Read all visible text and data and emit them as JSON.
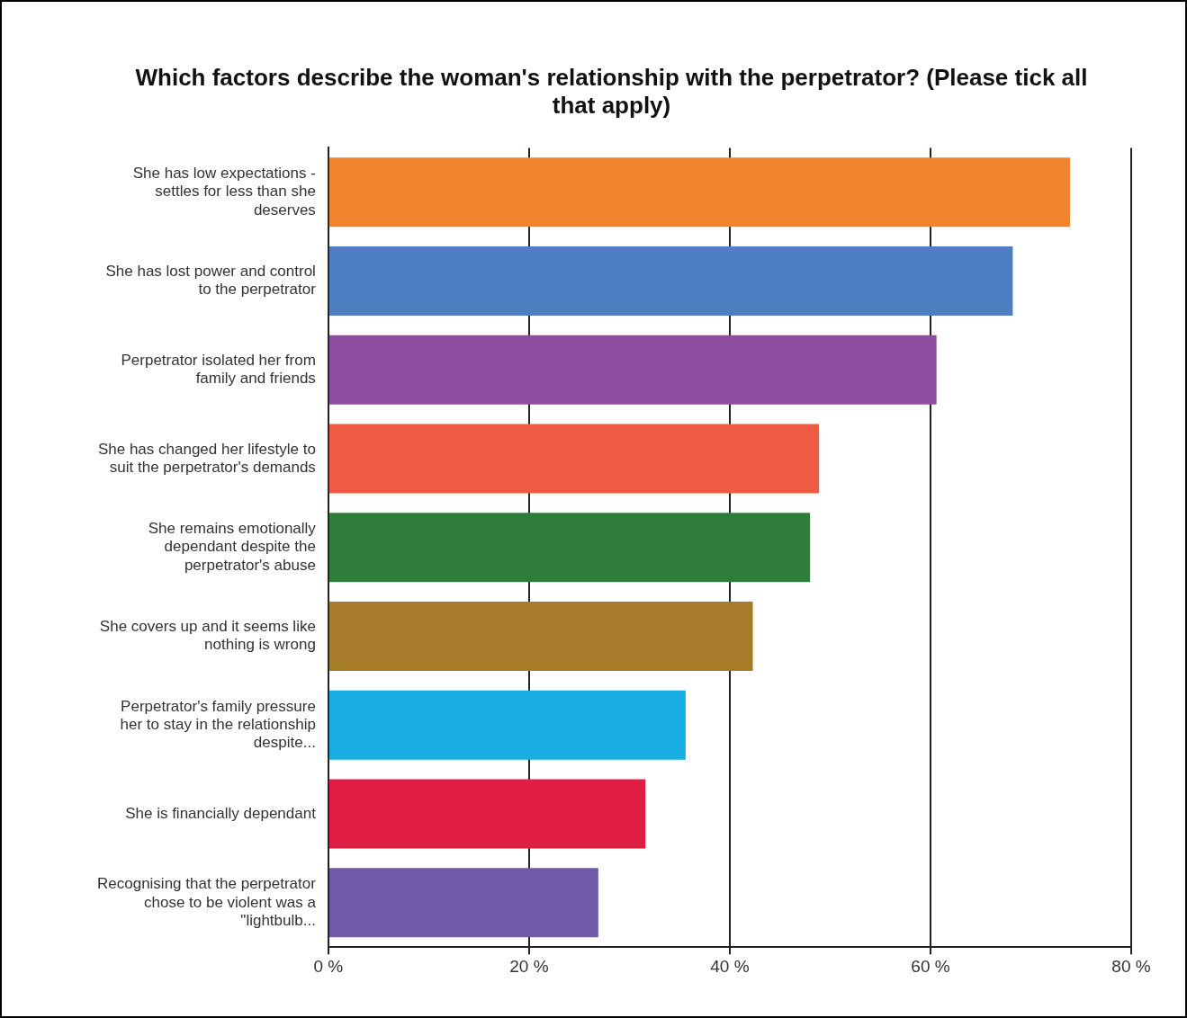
{
  "chart_data": {
    "type": "bar",
    "orientation": "horizontal",
    "title": "Which factors describe the woman's relationship with the perpetrator? (Please tick all that apply)",
    "categories": [
      "She has low expectations - settles for less than she deserves",
      "She has lost power and control to the perpetrator",
      "Perpetrator isolated her from family and friends",
      "She has changed her lifestyle to suit the perpetrator's demands",
      "She remains emotionally dependant despite the perpetrator's abuse",
      "She covers up and it seems like nothing is wrong",
      "Perpetrator's family pressure her to stay in the relationship despite...",
      "She is financially dependant",
      "Recognising that the perpetrator chose to be violent was a \"lightbulb..."
    ],
    "values": [
      73.9,
      68.2,
      60.6,
      48.9,
      48.0,
      42.3,
      35.6,
      31.6,
      26.9
    ],
    "colors": [
      "#f0852d",
      "#4f7fc3",
      "#8e4d9e",
      "#ee5a43",
      "#2e7d3a",
      "#a67c2a",
      "#18aee3",
      "#e01e43",
      "#6f5aa8"
    ],
    "xlim": [
      0,
      80
    ],
    "xticks": [
      {
        "value": 0,
        "label": "0 %"
      },
      {
        "value": 20,
        "label": "20 %"
      },
      {
        "value": 40,
        "label": "40 %"
      },
      {
        "value": 60,
        "label": "60 %"
      },
      {
        "value": 80,
        "label": "80 %"
      }
    ],
    "grid": "x"
  }
}
